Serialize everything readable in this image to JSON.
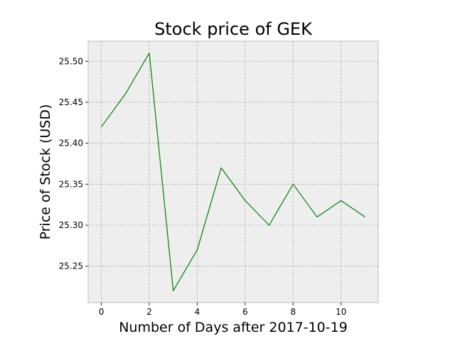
{
  "chart_data": {
    "type": "line",
    "title": "Stock price of GEK",
    "xlabel": "Number of Days after 2017-10-19",
    "ylabel": "Price of Stock (USD)",
    "x": [
      0,
      1,
      2,
      3,
      4,
      5,
      6,
      7,
      8,
      9,
      10,
      11
    ],
    "series": [
      {
        "values": [
          25.42,
          25.46,
          25.51,
          25.22,
          25.27,
          25.37,
          25.33,
          25.3,
          25.35,
          25.31,
          25.33,
          25.31
        ],
        "color": "#008000"
      }
    ],
    "xticks": [
      "0",
      "2",
      "4",
      "6",
      "8",
      "10"
    ],
    "yticks": [
      "25.25",
      "25.30",
      "25.35",
      "25.40",
      "25.45",
      "25.50"
    ],
    "xlim": [
      -0.55,
      11.55
    ],
    "ylim": [
      25.2055,
      25.5245
    ],
    "grid": true,
    "background": "#eeeeee"
  }
}
